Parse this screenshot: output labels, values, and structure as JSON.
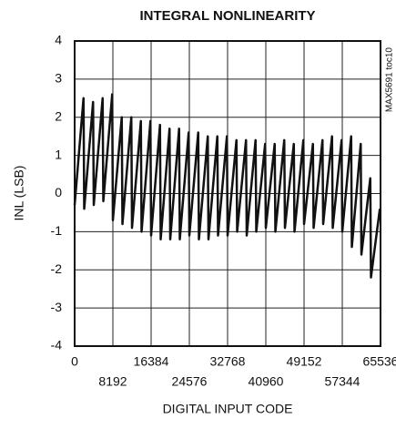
{
  "chart_data": {
    "type": "line",
    "title": "INTEGRAL NONLINEARITY",
    "xlabel": "DIGITAL INPUT CODE",
    "ylabel": "INL (LSB)",
    "annotation": "MAX5691 toc10",
    "x": [
      0,
      1900,
      2048,
      3948,
      4096,
      5996,
      6144,
      8044,
      8192,
      10092,
      10240,
      12140,
      12288,
      14188,
      14336,
      16236,
      16384,
      18284,
      18432,
      20332,
      20480,
      22380,
      22528,
      24428,
      24576,
      26476,
      26624,
      28524,
      28672,
      30572,
      30720,
      32620,
      32768,
      34668,
      34816,
      36716,
      36864,
      38764,
      38912,
      40812,
      40960,
      42860,
      43008,
      44908,
      45056,
      46956,
      47104,
      49004,
      49152,
      51052,
      51200,
      53100,
      53248,
      55148,
      55296,
      57196,
      57344,
      59244,
      59392,
      61292,
      61440,
      63340,
      63488,
      65388
    ],
    "series": [
      {
        "color": "#111111",
        "values": [
          -0.3,
          2.5,
          -0.4,
          2.4,
          -0.3,
          2.5,
          -0.2,
          2.6,
          -0.7,
          2.0,
          -0.8,
          2.0,
          -0.9,
          1.9,
          -1.0,
          1.9,
          -1.1,
          1.8,
          -1.2,
          1.7,
          -1.2,
          1.7,
          -1.2,
          1.6,
          -1.1,
          1.6,
          -1.2,
          1.5,
          -1.2,
          1.5,
          -1.1,
          1.5,
          -1.1,
          1.4,
          -1.0,
          1.4,
          -1.1,
          1.4,
          -1.0,
          1.3,
          -0.9,
          1.3,
          -1.0,
          1.4,
          -0.9,
          1.3,
          -1.0,
          1.4,
          -0.8,
          1.3,
          -0.9,
          1.4,
          -0.8,
          1.5,
          -0.9,
          1.4,
          -1.0,
          1.5,
          -1.4,
          1.3,
          -1.6,
          0.4,
          -2.2,
          -0.4
        ]
      }
    ],
    "xlim": [
      0,
      65536
    ],
    "xticks": [
      0,
      8192,
      16384,
      24576,
      32768,
      40960,
      49152,
      57344,
      65536
    ],
    "ylim": [
      -4,
      4
    ],
    "yticks": [
      -4,
      -3,
      -2,
      -1,
      0,
      1,
      2,
      3,
      4
    ],
    "grid": true
  }
}
